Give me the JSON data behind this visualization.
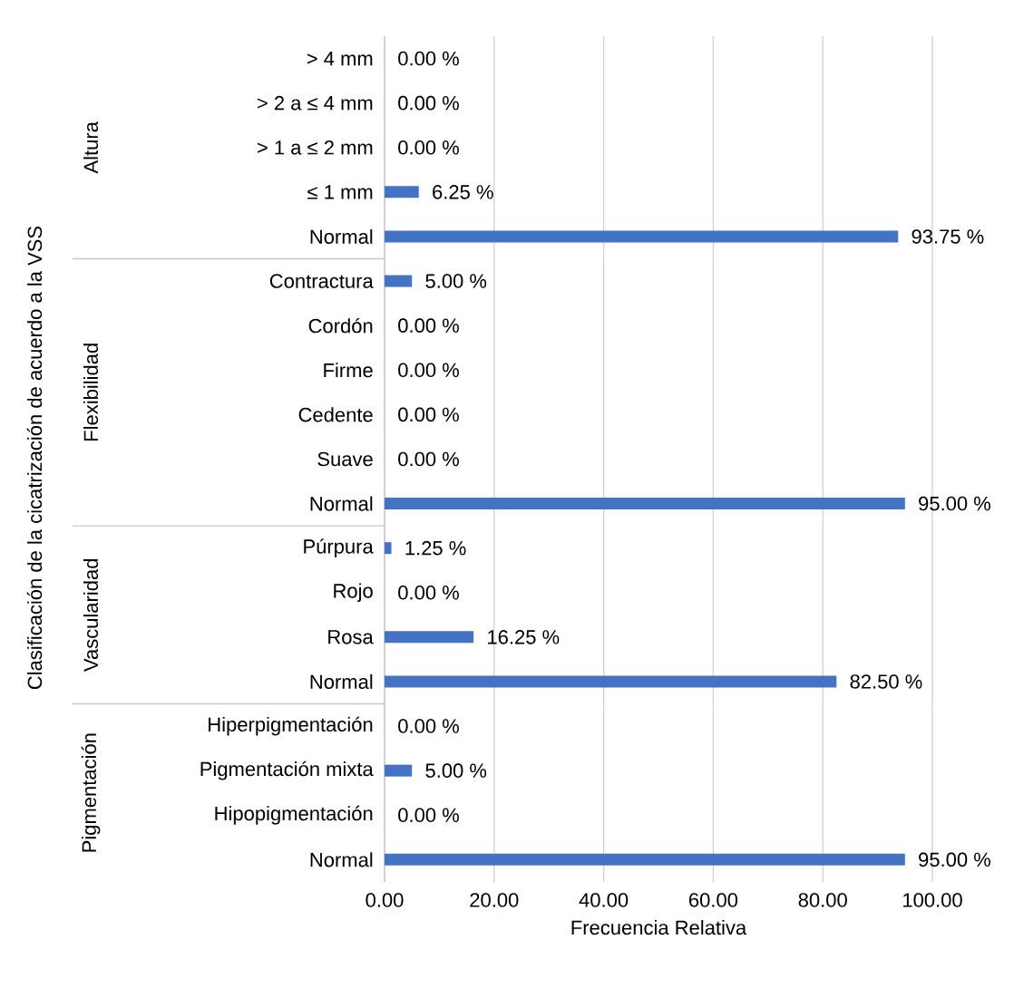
{
  "chart_data": [
    {
      "type": "bar",
      "orientation": "horizontal",
      "ylabel": "Altura",
      "annotations": [
        "Clasificación de la cicatrización de acuerdo a la VSS"
      ],
      "categories": [
        "> 4 mm",
        "> 2 a ≤ 4 mm",
        "> 1 a ≤ 2 mm",
        "≤ 1 mm",
        "Normal"
      ],
      "values": [
        0,
        0,
        0,
        6.25,
        93.75
      ],
      "value_labels": [
        "0.00 %",
        "0.00 %",
        "0.00 %",
        "6.25 %",
        "93.75 %"
      ],
      "color": "#4472c4",
      "xlim": [
        0,
        100
      ],
      "xticks": [
        0,
        20,
        40,
        60,
        80,
        100
      ],
      "grid": "x",
      "tick_labels": "y"
    },
    {
      "type": "bar",
      "orientation": "horizontal",
      "ylabel": "Flexibilidad",
      "categories": [
        "Contractura",
        "Cordón",
        "Firme",
        "Cedente",
        "Suave",
        "Normal"
      ],
      "values": [
        5,
        0,
        0,
        0,
        0,
        95
      ],
      "value_labels": [
        "5.00 %",
        "0.00 %",
        "0.00 %",
        "0.00 %",
        "0.00 %",
        "95.00 %"
      ],
      "color": "#4472c4",
      "xlim": [
        0,
        100
      ],
      "xticks": [
        0,
        20,
        40,
        60,
        80,
        100
      ],
      "grid": "x",
      "tick_labels": "y"
    },
    {
      "type": "bar",
      "orientation": "horizontal",
      "ylabel": "Vascularidad",
      "categories": [
        "Púrpura",
        "Rojo",
        "Rosa",
        "Normal"
      ],
      "values": [
        1.25,
        0,
        16.25,
        82.5
      ],
      "value_labels": [
        "1.25 %",
        "0.00 %",
        "16.25 %",
        "82.50 %"
      ],
      "color": "#4472c4",
      "xlim": [
        0,
        100
      ],
      "xticks": [
        0,
        20,
        40,
        60,
        80,
        100
      ],
      "grid": "x",
      "tick_labels": "y"
    },
    {
      "type": "bar",
      "orientation": "horizontal",
      "ylabel": "Pigmentación",
      "xlabel": "Frecuencia Relativa",
      "categories": [
        "Hiperpigmentación",
        "Pigmentación mixta",
        "Hipopigmentación",
        "Normal"
      ],
      "values": [
        0,
        5,
        0,
        95
      ],
      "value_labels": [
        "0.00 %",
        "5.00 %",
        "0.00 %",
        "95.00 %"
      ],
      "color": "#4472c4",
      "xlim": [
        0,
        100
      ],
      "xticks": [
        {
          "value": 0,
          "label": "0.00"
        },
        {
          "value": 20,
          "label": "20.00"
        },
        {
          "value": 40,
          "label": "40.00"
        },
        {
          "value": 60,
          "label": "60.00"
        },
        {
          "value": 80,
          "label": "80.00"
        },
        {
          "value": 100,
          "label": "100.00"
        }
      ],
      "grid": "x"
    }
  ]
}
